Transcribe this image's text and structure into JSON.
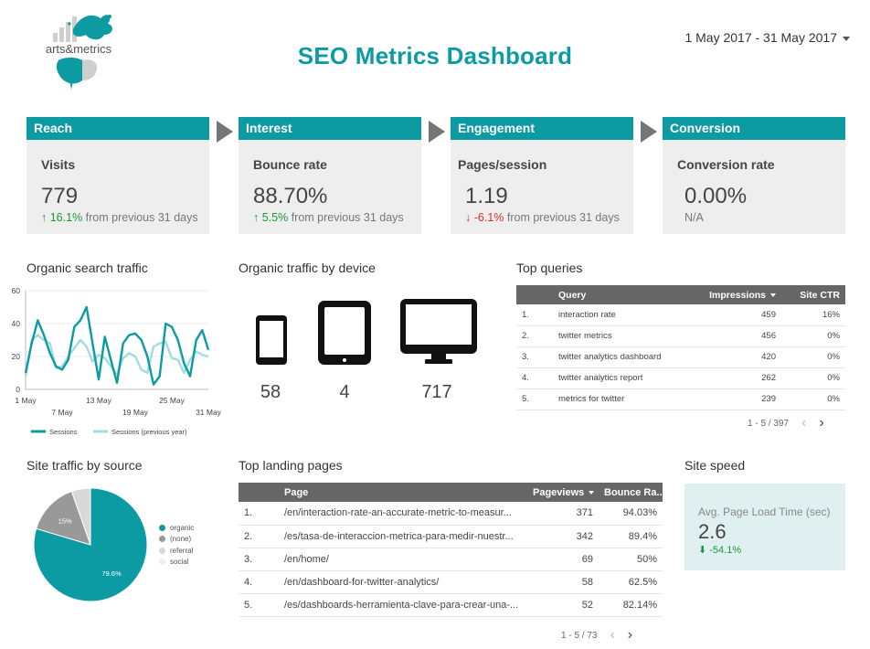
{
  "header": {
    "logo_text": "arts&metrics",
    "title": "SEO Metrics Dashboard",
    "date_range": "1 May 2017 - 31 May 2017"
  },
  "funnel": [
    {
      "stage": "Reach",
      "metric": "Visits",
      "value": "779",
      "delta_arrow": "↑",
      "delta": "16.1%",
      "delta_suffix": " from previous 31 days",
      "direction": "up"
    },
    {
      "stage": "Interest",
      "metric": "Bounce rate",
      "value": "88.70%",
      "delta_arrow": "↑",
      "delta": "5.5%",
      "delta_suffix": " from previous 31 days",
      "direction": "up"
    },
    {
      "stage": "Engagement",
      "metric": "Pages/session",
      "value": "1.19",
      "delta_arrow": "↓",
      "delta": "-6.1%",
      "delta_suffix": " from previous 31 days",
      "direction": "down"
    },
    {
      "stage": "Conversion",
      "metric": "Conversion rate",
      "value": "0.00%",
      "delta_arrow": "",
      "delta": "",
      "delta_suffix": "N/A",
      "direction": "none"
    }
  ],
  "organic_search": {
    "title": "Organic search traffic",
    "chart_data": {
      "type": "line",
      "ylim": [
        0,
        60
      ],
      "y_ticks": [
        "0",
        "20",
        "40",
        "60"
      ],
      "x_ticks": [
        "1 May",
        "7 May",
        "13 May",
        "19 May",
        "25 May",
        "31 May"
      ],
      "series": [
        {
          "name": "Sessions",
          "color": "#0c9aa3",
          "values": [
            10,
            28,
            42,
            33,
            22,
            14,
            12,
            18,
            38,
            42,
            50,
            28,
            6,
            32,
            18,
            4,
            28,
            33,
            34,
            30,
            20,
            3,
            8,
            40,
            38,
            30,
            16,
            8,
            30,
            36,
            24
          ]
        },
        {
          "name": "Sessions (previous year)",
          "color": "#9fdde0",
          "values": [
            8,
            30,
            33,
            30,
            28,
            13,
            14,
            20,
            25,
            30,
            26,
            17,
            21,
            19,
            14,
            9,
            19,
            22,
            20,
            12,
            10,
            26,
            28,
            29,
            19,
            18,
            10,
            18,
            23,
            21,
            20
          ]
        }
      ]
    }
  },
  "device": {
    "title": "Organic traffic by device",
    "items": [
      {
        "icon": "smartphone-icon",
        "value": "58"
      },
      {
        "icon": "tablet-icon",
        "value": "4"
      },
      {
        "icon": "desktop-icon",
        "value": "717"
      }
    ]
  },
  "top_queries": {
    "title": "Top queries",
    "columns": [
      "Query",
      "Impressions",
      "Site CTR"
    ],
    "rows": [
      {
        "idx": "1.",
        "query": "interaction rate",
        "impressions": "459",
        "ctr": "16%"
      },
      {
        "idx": "2.",
        "query": "twitter metrics",
        "impressions": "456",
        "ctr": "0%"
      },
      {
        "idx": "3.",
        "query": "twitter analytics dashboard",
        "impressions": "420",
        "ctr": "0%"
      },
      {
        "idx": "4.",
        "query": "twitter analytics report",
        "impressions": "262",
        "ctr": "0%"
      },
      {
        "idx": "5.",
        "query": "metrics for twitter",
        "impressions": "239",
        "ctr": "0%"
      }
    ],
    "pagination": "1 - 5 / 397"
  },
  "traffic_source": {
    "title": "Site traffic by source",
    "chart_data": {
      "type": "pie",
      "slices": [
        {
          "label": "organic",
          "value": 79.6,
          "text": "79.6%",
          "color": "#0c9aa3"
        },
        {
          "label": "(none)",
          "value": 15,
          "text": "15%",
          "color": "#999999"
        },
        {
          "label": "referral",
          "value": 5.4,
          "text": "",
          "color": "#d9d9d9"
        },
        {
          "label": "social",
          "value": 0,
          "text": "",
          "color": "#eeeeee"
        }
      ]
    }
  },
  "landing_pages": {
    "title": "Top landing pages",
    "columns": [
      "Page",
      "Pageviews",
      "Bounce Ra..."
    ],
    "rows": [
      {
        "idx": "1.",
        "page": "/en/interaction-rate-an-accurate-metric-to-measur...",
        "views": "371",
        "bounce": "94.03%"
      },
      {
        "idx": "2.",
        "page": "/es/tasa-de-interaccion-metrica-para-medir-nuestr...",
        "views": "342",
        "bounce": "89.4%"
      },
      {
        "idx": "3.",
        "page": "/en/home/",
        "views": "69",
        "bounce": "50%"
      },
      {
        "idx": "4.",
        "page": "/en/dashboard-for-twitter-analytics/",
        "views": "58",
        "bounce": "62.5%"
      },
      {
        "idx": "5.",
        "page": "/es/dashboards-herramienta-clave-para-crear-una-...",
        "views": "52",
        "bounce": "82.14%"
      }
    ],
    "pagination": "1 - 5 / 73"
  },
  "site_speed": {
    "title": "Site speed",
    "label": "Avg. Page Load Time (sec)",
    "value": "2.6",
    "delta": "⬇ -54.1%"
  },
  "pager_icons": {
    "prev": "‹",
    "next": "›"
  }
}
